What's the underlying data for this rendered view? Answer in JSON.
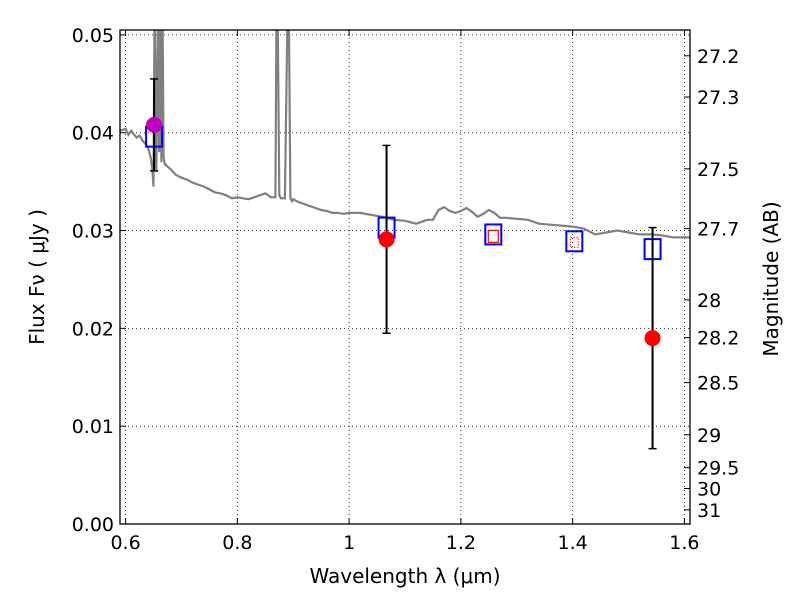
{
  "chart_data": {
    "type": "scatter",
    "xlabel": "Wavelength  λ (μm)",
    "ylabel": "Flux  Fν  ( μJy )",
    "y2label": "Magnitude (AB)",
    "xlim": [
      0.59,
      1.61
    ],
    "ylim": [
      0.0,
      0.0505
    ],
    "grid": true,
    "x_ticks": [
      {
        "value": 0.6,
        "label": "0.6"
      },
      {
        "value": 0.8,
        "label": "0.8"
      },
      {
        "value": 1.0,
        "label": "1"
      },
      {
        "value": 1.2,
        "label": "1.2"
      },
      {
        "value": 1.4,
        "label": "1.4"
      },
      {
        "value": 1.6,
        "label": "1.6"
      }
    ],
    "y_ticks": [
      {
        "value": 0.0,
        "label": "0.00"
      },
      {
        "value": 0.01,
        "label": "0.01"
      },
      {
        "value": 0.02,
        "label": "0.02"
      },
      {
        "value": 0.03,
        "label": "0.03"
      },
      {
        "value": 0.04,
        "label": "0.04"
      },
      {
        "value": 0.05,
        "label": "0.05"
      }
    ],
    "y2_ticks": [
      {
        "magnitude": 27.2,
        "label": "27.2"
      },
      {
        "magnitude": 27.3,
        "label": "27.3"
      },
      {
        "magnitude": 27.5,
        "label": "27.5"
      },
      {
        "magnitude": 27.7,
        "label": "27.7"
      },
      {
        "magnitude": 28.0,
        "label": "28"
      },
      {
        "magnitude": 28.2,
        "label": "28.2"
      },
      {
        "magnitude": 28.5,
        "label": "28.5"
      },
      {
        "magnitude": 29.0,
        "label": "29"
      },
      {
        "magnitude": 29.5,
        "label": "29.5"
      },
      {
        "magnitude": 30.0,
        "label": "30"
      },
      {
        "magnitude": 31.0,
        "label": "31"
      }
    ],
    "series": [
      {
        "type": "line",
        "color": "#808080",
        "x": [
          0.59,
          0.6,
          0.605,
          0.61,
          0.615,
          0.62,
          0.625,
          0.63,
          0.635,
          0.64,
          0.645,
          0.648,
          0.65,
          0.652,
          0.655,
          0.658,
          0.66,
          0.662,
          0.664,
          0.666,
          0.668,
          0.67,
          0.68,
          0.69,
          0.7,
          0.71,
          0.72,
          0.73,
          0.74,
          0.75,
          0.76,
          0.77,
          0.78,
          0.79,
          0.8,
          0.81,
          0.82,
          0.83,
          0.84,
          0.85,
          0.86,
          0.868,
          0.87,
          0.872,
          0.875,
          0.878,
          0.88,
          0.885,
          0.89,
          0.892,
          0.895,
          0.898,
          0.9,
          0.91,
          0.92,
          0.93,
          0.94,
          0.95,
          0.96,
          0.97,
          0.98,
          0.99,
          1.0,
          1.02,
          1.04,
          1.06,
          1.08,
          1.1,
          1.12,
          1.14,
          1.15,
          1.16,
          1.17,
          1.18,
          1.19,
          1.2,
          1.21,
          1.22,
          1.23,
          1.24,
          1.25,
          1.26,
          1.27,
          1.28,
          1.3,
          1.32,
          1.34,
          1.36,
          1.38,
          1.4,
          1.42,
          1.44,
          1.46,
          1.48,
          1.5,
          1.52,
          1.54,
          1.56,
          1.58,
          1.6,
          1.61
        ],
        "y": [
          0.0402,
          0.0404,
          0.0398,
          0.0402,
          0.0398,
          0.0395,
          0.0397,
          0.0392,
          0.0389,
          0.0385,
          0.0375,
          0.0362,
          0.0345,
          0.053,
          0.036,
          0.053,
          0.038,
          0.053,
          0.037,
          0.053,
          0.0375,
          0.0368,
          0.0363,
          0.0357,
          0.0354,
          0.0352,
          0.0349,
          0.0347,
          0.0345,
          0.0342,
          0.0339,
          0.0338,
          0.0336,
          0.0333,
          0.0334,
          0.0333,
          0.0332,
          0.0334,
          0.0336,
          0.0338,
          0.0334,
          0.0334,
          0.053,
          0.053,
          0.0336,
          0.0333,
          0.0333,
          0.0333,
          0.053,
          0.053,
          0.0333,
          0.033,
          0.0332,
          0.0329,
          0.0327,
          0.0325,
          0.0323,
          0.0321,
          0.032,
          0.0318,
          0.0318,
          0.0317,
          0.0318,
          0.0318,
          0.0316,
          0.0314,
          0.0311,
          0.031,
          0.0307,
          0.0311,
          0.0311,
          0.0321,
          0.0324,
          0.032,
          0.0318,
          0.032,
          0.0323,
          0.0319,
          0.0314,
          0.0317,
          0.0321,
          0.0318,
          0.0313,
          0.0313,
          0.0312,
          0.0311,
          0.0307,
          0.0306,
          0.0305,
          0.0304,
          0.0302,
          0.0296,
          0.0298,
          0.03,
          0.0298,
          0.0296,
          0.0296,
          0.0295,
          0.0293,
          0.0293,
          0.0293
        ]
      },
      {
        "type": "scatter",
        "marker": "square-open",
        "color": "#0000ff",
        "x": [
          0.651,
          1.067,
          1.258,
          1.403,
          1.543
        ],
        "y": [
          0.0396,
          0.0303,
          0.0296,
          0.0289,
          0.0281
        ]
      },
      {
        "type": "scatter",
        "marker": "circle",
        "color": "#ff0000",
        "x": [
          0.651,
          1.067,
          1.258,
          1.403,
          1.543
        ],
        "y": [
          0.0408,
          0.0291,
          0.0294,
          0.0288,
          0.019
        ],
        "yerr": [
          0.0047,
          0.0096,
          null,
          null,
          0.0113
        ],
        "marker_size": [
          "large",
          "large",
          "small",
          "tiny",
          "large"
        ],
        "marker_colors": [
          "#c000c0",
          "#ff0000",
          "#ff0000",
          "#ff0000",
          "#ff0000"
        ]
      }
    ]
  }
}
